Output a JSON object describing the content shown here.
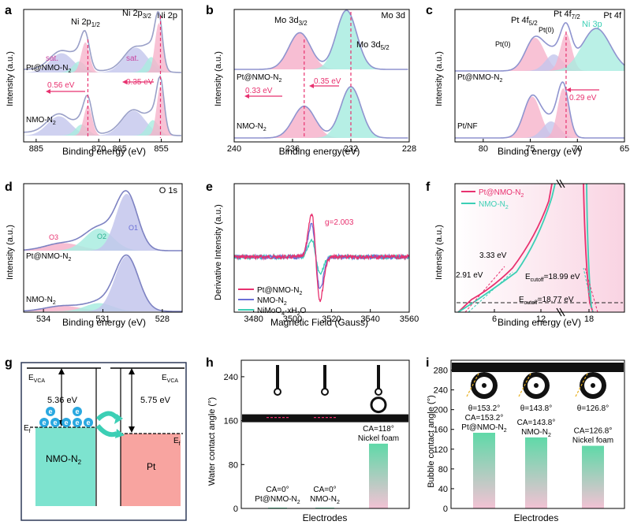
{
  "colors": {
    "pink": "#e8316f",
    "pink_fill": "#f6b3cb",
    "purple": "#6a6fd6",
    "purple_fill": "#c3c6ec",
    "teal": "#3ccfb5",
    "teal_fill": "#a9ece0",
    "blue_dark": "#2e3a59",
    "nmo_box": "#7de3cf",
    "pt_box": "#f8a4a0",
    "electron": "#2aa8e0"
  },
  "panels": {
    "a": {
      "letter": "a",
      "corner_label": "Ni 2p",
      "xlabel": "Binding energy (eV)",
      "ylabel": "Intensity (a.u.)",
      "ticks": [
        "885",
        "870",
        "865",
        "855"
      ],
      "peak_labels": [
        "sat.",
        "Ni 2p",
        "1/2",
        "Ni 2p",
        "3/2",
        "sat."
      ],
      "sample_top": "Pt@NMO-N",
      "sample_top_sub": "2",
      "sample_bottom": "NMO-N",
      "sample_bottom_sub": "2",
      "shift_left": "0.56 eV",
      "shift_right": "0.35 eV"
    },
    "b": {
      "letter": "b",
      "corner_label": "Mo 3d",
      "xlabel": "Binding energy(eV)",
      "ylabel": "Intensity (a.u.)",
      "ticks": [
        "240",
        "236",
        "232",
        "228"
      ],
      "peak_labels": [
        "Mo 3d",
        "3/2",
        "Mo 3d",
        "5/2"
      ],
      "sample_top": "Pt@NMO-N",
      "sample_top_sub": "2",
      "sample_bottom": "NMO-N",
      "sample_bottom_sub": "2",
      "shift_left": "0.33 eV",
      "shift_right": "0.35 eV"
    },
    "c": {
      "letter": "c",
      "corner_label": "Pt 4f",
      "xlabel": "Binding energy (eV)",
      "ylabel": "Intensity (a.u.)",
      "ticks": [
        "80",
        "75",
        "70",
        "65"
      ],
      "peak_labels": [
        "Pt 4f",
        "5/2",
        "Pt 4f",
        "7/2",
        "Pt(0)",
        "Pt(0)",
        "Ni 3p"
      ],
      "sample_top": "Pt@NMO-N",
      "sample_top_sub": "2",
      "sample_bottom": "Pt/NF",
      "shift_right": "0.29 eV"
    },
    "d": {
      "letter": "d",
      "corner_label": "O 1s",
      "xlabel": "Binding energy (eV)",
      "ylabel": "Intensity (a.u.)",
      "ticks": [
        "534",
        "531",
        "528"
      ],
      "peak_labels": [
        "O3",
        "O2",
        "O1"
      ],
      "sample_top": "Pt@NMO-N",
      "sample_top_sub": "2",
      "sample_bottom": "NMO-N",
      "sample_bottom_sub": "2"
    },
    "e": {
      "letter": "e",
      "xlabel": "Magnetic Field (Gauss)",
      "ylabel": "Derivative Intensity (a.u.)",
      "ticks": [
        "3480",
        "3500",
        "3520",
        "3540",
        "3560"
      ],
      "g_label": "g=2.003",
      "legend": [
        "Pt@NMO-N",
        "NMO-N",
        "NiMoO",
        "·xH",
        "O"
      ],
      "legend_subs": [
        "2",
        "2",
        "4",
        "2"
      ]
    },
    "f": {
      "letter": "f",
      "xlabel": "Binding energy (eV)",
      "ylabel": "Intensity (a.u.)",
      "ticks": [
        "6",
        "12",
        "18"
      ],
      "legend": [
        "Pt@NMO-N",
        "NMO-N"
      ],
      "legend_subs": [
        "2",
        "2"
      ],
      "annotations": [
        "2.91 eV",
        "3.33 eV",
        "E",
        "cutoff",
        "=18.99 eV",
        "E",
        "cutoff",
        "=18.77 eV"
      ]
    },
    "g": {
      "letter": "g",
      "evca_left": "E",
      "evca_right": "E",
      "evca_sub": "VCA",
      "wf_left": "5.36 eV",
      "wf_right": "5.75 eV",
      "ef_left": "E",
      "ef_right": "E",
      "ef_sub": "f",
      "box_left": "NMO-N",
      "box_left_sub": "2",
      "box_right": "Pt",
      "electron": "e"
    },
    "h": {
      "letter": "h",
      "xlabel": "Electrodes",
      "ylabel": "Water contact angle (°)",
      "ticks": [
        "0",
        "80",
        "160",
        "240"
      ],
      "ca_labels": [
        "CA=0°",
        "CA=0°",
        "CA=118°"
      ],
      "electrodes": [
        "Pt@NMO-N",
        "NMO-N",
        "Nickel foam"
      ],
      "electrode_subs": [
        "2",
        "2",
        ""
      ]
    },
    "i": {
      "letter": "i",
      "xlabel": "Electrodes",
      "ylabel": "Bubble contact angle (°)",
      "ticks": [
        "0",
        "40",
        "80",
        "120",
        "160",
        "200",
        "240",
        "280"
      ],
      "theta_labels": [
        "θ=153.2°",
        "θ=143.8°",
        "θ=126.8°"
      ],
      "ca_labels": [
        "CA=153.2°",
        "CA=143.8°",
        "CA=126.8°"
      ],
      "electrodes": [
        "Pt@NMO-N",
        "NMO-N",
        "Nickel foam"
      ],
      "electrode_subs": [
        "2",
        "2",
        ""
      ]
    }
  },
  "chart_data": [
    {
      "type": "line",
      "panel": "a",
      "title": "Ni 2p",
      "xlabel": "Binding energy (eV)",
      "ylabel": "Intensity (a.u.)",
      "xlim": [
        888,
        850
      ],
      "xticks": [
        885,
        870,
        865,
        855
      ],
      "series": [
        {
          "name": "Pt@NMO-N2",
          "peaks_eV": [
            878.9,
            873.2,
            861.1,
            855.6
          ]
        },
        {
          "name": "NMO-N2",
          "peaks_eV": [
            879.5,
            872.6,
            861.6,
            855.2
          ]
        }
      ]
    },
    {
      "type": "line",
      "panel": "b",
      "title": "Mo 3d",
      "xlabel": "Binding energy(eV)",
      "ylabel": "Intensity (a.u.)",
      "xlim": [
        240,
        228
      ],
      "xticks": [
        240,
        236,
        232,
        228
      ],
      "series": [
        {
          "name": "Pt@NMO-N2",
          "peaks_eV": [
            235.5,
            232.3
          ]
        },
        {
          "name": "NMO-N2",
          "peaks_eV": [
            235.2,
            232.0
          ]
        }
      ]
    },
    {
      "type": "line",
      "panel": "c",
      "title": "Pt 4f",
      "xlabel": "Binding energy (eV)",
      "ylabel": "Intensity (a.u.)",
      "xlim": [
        83,
        65
      ],
      "xticks": [
        80,
        75,
        70,
        65
      ],
      "series": [
        {
          "name": "Pt@NMO-N2",
          "peaks_eV": [
            74.5,
            71.2,
            68.0
          ]
        },
        {
          "name": "Pt/NF",
          "peaks_eV": [
            74.8,
            71.5
          ]
        }
      ]
    },
    {
      "type": "line",
      "panel": "d",
      "title": "O 1s",
      "xlabel": "Binding energy (eV)",
      "ylabel": "Intensity (a.u.)",
      "xlim": [
        535,
        527
      ],
      "xticks": [
        534,
        531,
        528
      ],
      "series": [
        {
          "name": "Pt@NMO-N2",
          "peaks_eV": [
            533.0,
            531.2,
            529.8
          ]
        },
        {
          "name": "NMO-N2",
          "peaks_eV": [
            533.0,
            531.2,
            529.8
          ]
        }
      ]
    },
    {
      "type": "line",
      "panel": "e",
      "xlabel": "Magnetic Field (Gauss)",
      "ylabel": "Derivative Intensity (a.u.)",
      "xlim": [
        3470,
        3560
      ],
      "xticks": [
        3480,
        3500,
        3520,
        3540,
        3560
      ],
      "annotation": "g=2.003",
      "series": [
        {
          "name": "Pt@NMO-N2",
          "signal_center": 3512,
          "amplitude": 1.0
        },
        {
          "name": "NMO-N2",
          "signal_center": 3512,
          "amplitude": 0.75
        },
        {
          "name": "NiMoO4·xH2O",
          "signal_center": 3512,
          "amplitude": 0.4
        }
      ]
    },
    {
      "type": "line",
      "panel": "f",
      "xlabel": "Binding energy (eV)",
      "ylabel": "Intensity (a.u.)",
      "xticks": [
        6,
        12,
        18
      ],
      "series": [
        {
          "name": "Pt@NMO-N2",
          "valence_edge_eV": 3.33,
          "cutoff_eV": 18.99
        },
        {
          "name": "NMO-N2",
          "valence_edge_eV": 2.91,
          "cutoff_eV": 18.77
        }
      ]
    },
    {
      "type": "bar",
      "panel": "h",
      "xlabel": "Electrodes",
      "ylabel": "Water contact angle (°)",
      "ylim": [
        0,
        270
      ],
      "yticks": [
        0,
        80,
        160,
        240
      ],
      "categories": [
        "Pt@NMO-N2",
        "NMO-N2",
        "Nickel foam"
      ],
      "values": [
        0,
        0,
        118
      ]
    },
    {
      "type": "bar",
      "panel": "i",
      "xlabel": "Electrodes",
      "ylabel": "Bubble contact angle (°)",
      "ylim": [
        0,
        300
      ],
      "yticks": [
        0,
        40,
        80,
        120,
        160,
        200,
        240,
        280
      ],
      "categories": [
        "Pt@NMO-N2",
        "NMO-N2",
        "Nickel foam"
      ],
      "values": [
        153.2,
        143.8,
        126.8
      ]
    }
  ]
}
